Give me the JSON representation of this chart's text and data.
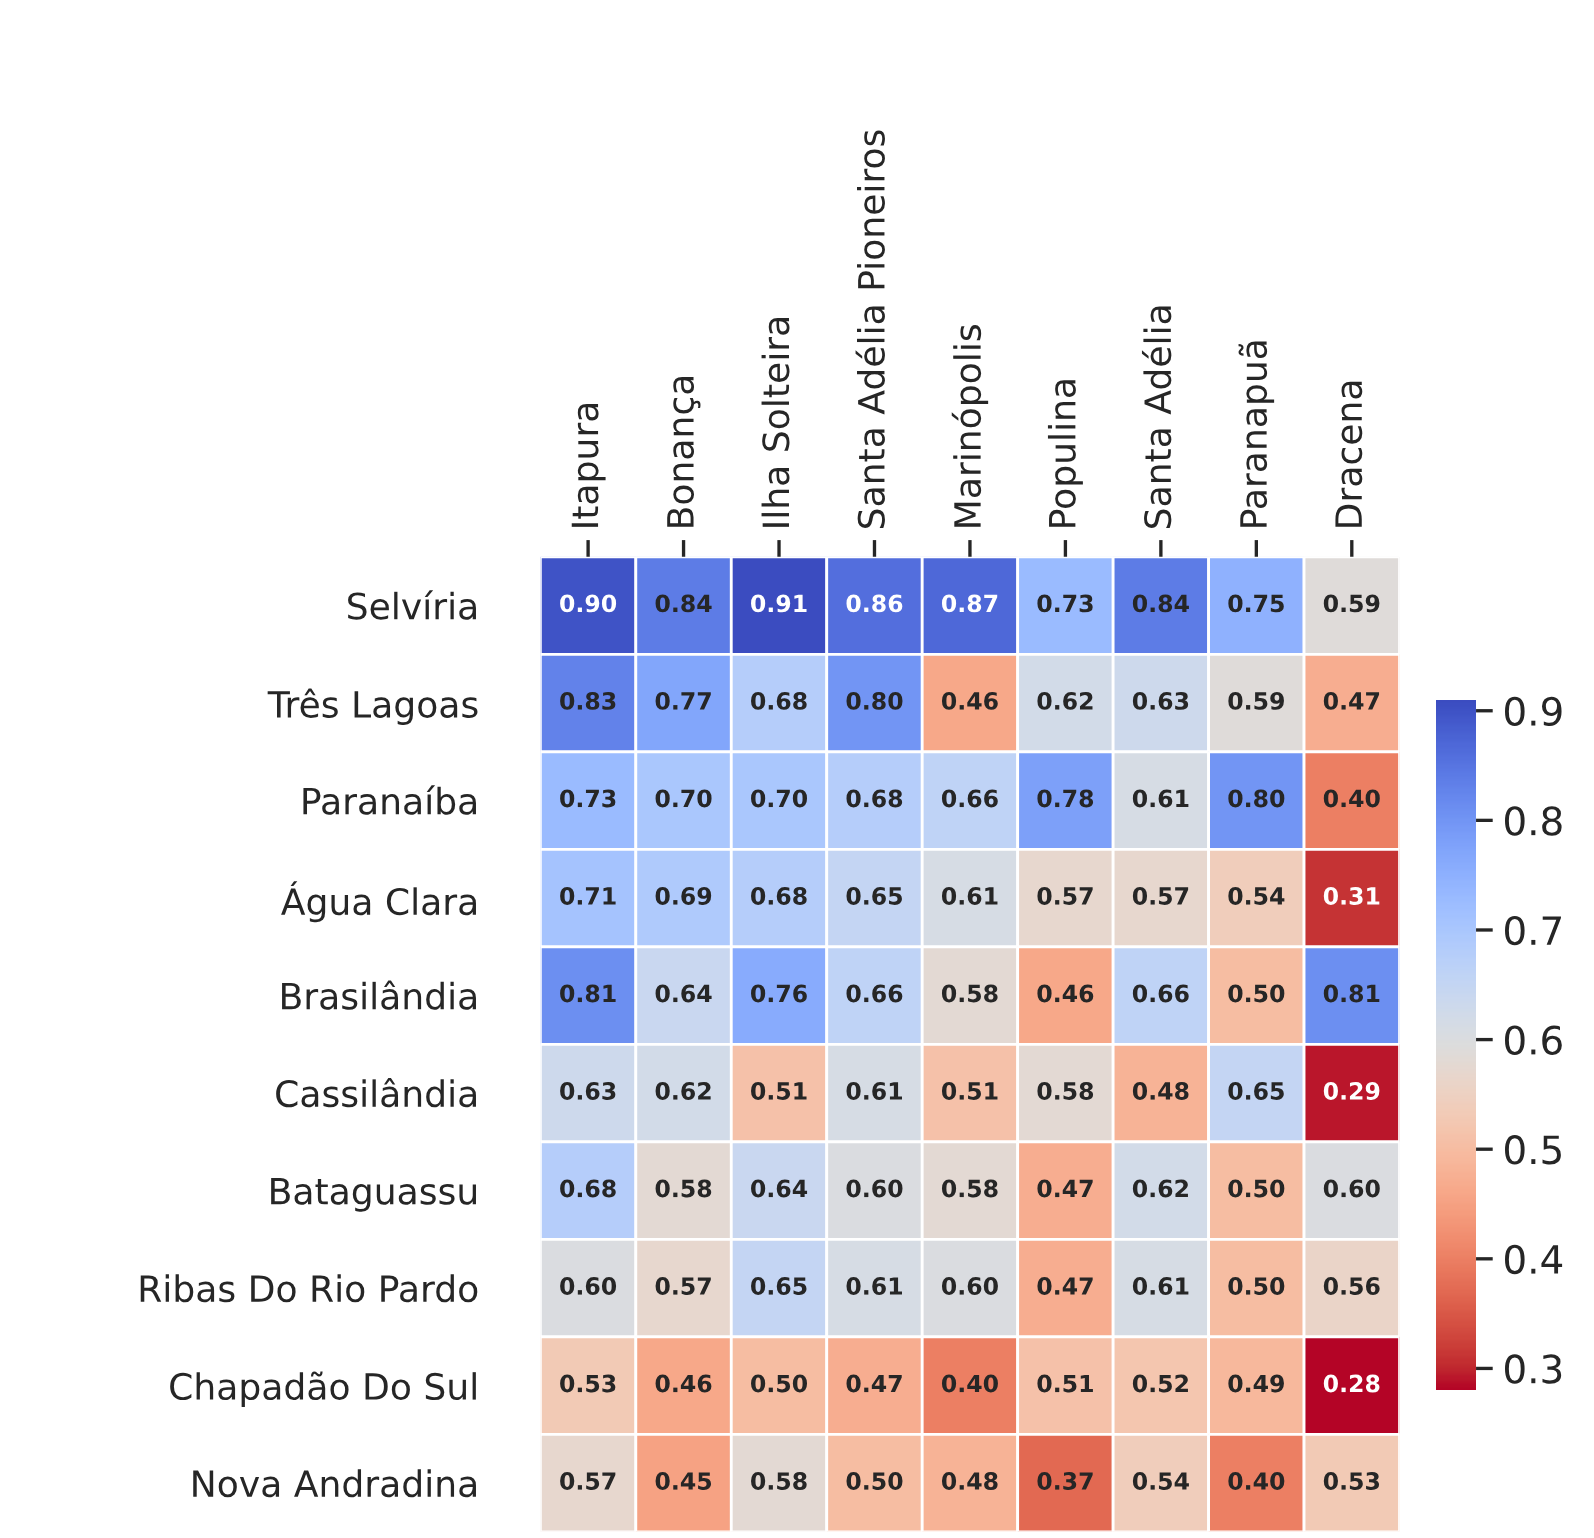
{
  "chart_data": {
    "type": "heatmap",
    "categories": [
      "Itapura",
      "Bonança",
      "Ilha Solteira",
      "Santa Adélia Pioneiros",
      "Marinópolis",
      "Populina",
      "Santa Adélia",
      "Paranapuã",
      "Dracena"
    ],
    "y_categories": [
      "Selvíria",
      "Três Lagoas",
      "Paranaíba",
      "Água Clara",
      "Brasilândia",
      "Cassilândia",
      "Bataguassu",
      "Ribas Do Rio Pardo",
      "Chapadão Do Sul",
      "Nova Andradina"
    ],
    "cells": [
      [
        0.9,
        0.84,
        0.91,
        0.86,
        0.87,
        0.73,
        0.84,
        0.75,
        0.59
      ],
      [
        0.83,
        0.77,
        0.68,
        0.8,
        0.46,
        0.62,
        0.63,
        0.59,
        0.47
      ],
      [
        0.73,
        0.7,
        0.7,
        0.68,
        0.66,
        0.78,
        0.61,
        0.8,
        0.4
      ],
      [
        0.71,
        0.69,
        0.68,
        0.65,
        0.61,
        0.57,
        0.57,
        0.54,
        0.31
      ],
      [
        0.81,
        0.64,
        0.76,
        0.66,
        0.58,
        0.46,
        0.66,
        0.5,
        0.81
      ],
      [
        0.63,
        0.62,
        0.51,
        0.61,
        0.51,
        0.58,
        0.48,
        0.65,
        0.29
      ],
      [
        0.68,
        0.58,
        0.64,
        0.6,
        0.58,
        0.47,
        0.62,
        0.5,
        0.6
      ],
      [
        0.6,
        0.57,
        0.65,
        0.61,
        0.6,
        0.47,
        0.61,
        0.5,
        0.56
      ],
      [
        0.53,
        0.46,
        0.5,
        0.47,
        0.4,
        0.51,
        0.52,
        0.49,
        0.28
      ],
      [
        0.57,
        0.45,
        0.58,
        0.5,
        0.48,
        0.37,
        0.54,
        0.4,
        0.53
      ]
    ],
    "cell_labels": [
      [
        "0.90",
        "0.84",
        "0.91",
        "0.86",
        "0.87",
        "0.73",
        "0.84",
        "0.75",
        "0.59"
      ],
      [
        "0.83",
        "0.77",
        "0.68",
        "0.80",
        "0.46",
        "0.62",
        "0.63",
        "0.59",
        "0.47"
      ],
      [
        "0.73",
        "0.70",
        "0.70",
        "0.68",
        "0.66",
        "0.78",
        "0.61",
        "0.80",
        "0.40"
      ],
      [
        "0.71",
        "0.69",
        "0.68",
        "0.65",
        "0.61",
        "0.57",
        "0.57",
        "0.54",
        "0.31"
      ],
      [
        "0.81",
        "0.64",
        "0.76",
        "0.66",
        "0.58",
        "0.46",
        "0.66",
        "0.50",
        "0.81"
      ],
      [
        "0.63",
        "0.62",
        "0.51",
        "0.61",
        "0.51",
        "0.58",
        "0.48",
        "0.65",
        "0.29"
      ],
      [
        "0.68",
        "0.58",
        "0.64",
        "0.60",
        "0.58",
        "0.47",
        "0.62",
        "0.50",
        "0.60"
      ],
      [
        "0.60",
        "0.57",
        "0.65",
        "0.61",
        "0.60",
        "0.47",
        "0.61",
        "0.50",
        "0.56"
      ],
      [
        "0.53",
        "0.46",
        "0.50",
        "0.47",
        "0.40",
        "0.51",
        "0.52",
        "0.49",
        "0.28"
      ],
      [
        "0.57",
        "0.45",
        "0.58",
        "0.50",
        "0.48",
        "0.37",
        "0.54",
        "0.40",
        "0.53"
      ]
    ],
    "clim": [
      0.28,
      0.91
    ],
    "cticks": [
      0.3,
      0.4,
      0.5,
      0.6,
      0.7,
      0.8,
      0.9
    ]
  }
}
